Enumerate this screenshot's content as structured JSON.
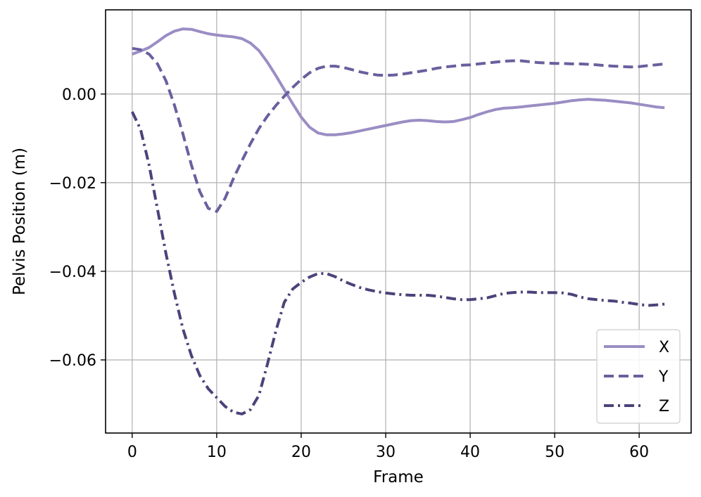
{
  "chart_data": {
    "type": "line",
    "xlabel": "Frame",
    "ylabel": "Pelvis Position (m)",
    "xlim": [
      -3.15,
      66.15
    ],
    "ylim": [
      -0.0765,
      0.019
    ],
    "xticks": [
      0,
      10,
      20,
      30,
      40,
      50,
      60
    ],
    "yticks": [
      0.0,
      -0.02,
      -0.04,
      -0.06
    ],
    "xtick_labels": [
      "0",
      "10",
      "20",
      "30",
      "40",
      "50",
      "60"
    ],
    "ytick_labels": [
      "0.00",
      "−0.02",
      "−0.04",
      "−0.06"
    ],
    "grid": true,
    "legend_position": "lower-right",
    "series": [
      {
        "name": "X",
        "style": "solid",
        "color": "#9b8dc4",
        "x": [
          0,
          1,
          2,
          3,
          4,
          5,
          6,
          7,
          8,
          9,
          10,
          11,
          12,
          13,
          14,
          15,
          16,
          17,
          18,
          19,
          20,
          21,
          22,
          23,
          24,
          25,
          26,
          27,
          28,
          29,
          30,
          31,
          32,
          33,
          34,
          35,
          36,
          37,
          38,
          39,
          40,
          41,
          42,
          43,
          44,
          45,
          46,
          47,
          48,
          49,
          50,
          51,
          52,
          53,
          54,
          55,
          56,
          57,
          58,
          59,
          60,
          61,
          62,
          63
        ],
        "y": [
          0.009,
          0.0097,
          0.0105,
          0.0118,
          0.0132,
          0.0142,
          0.0147,
          0.0146,
          0.0141,
          0.0136,
          0.0133,
          0.0131,
          0.0129,
          0.0125,
          0.0115,
          0.0098,
          0.0072,
          0.0042,
          0.001,
          -0.0022,
          -0.0052,
          -0.0075,
          -0.0088,
          -0.0092,
          -0.0092,
          -0.009,
          -0.0087,
          -0.0083,
          -0.0079,
          -0.0075,
          -0.0071,
          -0.0067,
          -0.0063,
          -0.006,
          -0.0059,
          -0.006,
          -0.0062,
          -0.0063,
          -0.0062,
          -0.0058,
          -0.0053,
          -0.0046,
          -0.004,
          -0.0035,
          -0.0032,
          -0.0031,
          -0.0029,
          -0.0027,
          -0.0025,
          -0.0023,
          -0.0021,
          -0.0018,
          -0.0015,
          -0.0013,
          -0.0012,
          -0.0013,
          -0.0014,
          -0.0016,
          -0.0018,
          -0.002,
          -0.0023,
          -0.0026,
          -0.0029,
          -0.0031
        ]
      },
      {
        "name": "Y",
        "style": "dashed",
        "color": "#6a5f9e",
        "x": [
          0,
          1,
          2,
          3,
          4,
          5,
          6,
          7,
          8,
          9,
          10,
          11,
          12,
          13,
          14,
          15,
          16,
          17,
          18,
          19,
          20,
          21,
          22,
          23,
          24,
          25,
          26,
          27,
          28,
          29,
          30,
          31,
          32,
          33,
          34,
          35,
          36,
          37,
          38,
          39,
          40,
          41,
          42,
          43,
          44,
          45,
          46,
          47,
          48,
          49,
          50,
          51,
          52,
          53,
          54,
          55,
          56,
          57,
          58,
          59,
          60,
          61,
          62,
          63
        ],
        "y": [
          0.0103,
          0.01,
          0.009,
          0.0068,
          0.003,
          -0.0025,
          -0.009,
          -0.016,
          -0.022,
          -0.0258,
          -0.0265,
          -0.0235,
          -0.019,
          -0.015,
          -0.0112,
          -0.0078,
          -0.005,
          -0.0026,
          -0.0005,
          0.0015,
          0.0033,
          0.0048,
          0.0058,
          0.0063,
          0.0063,
          0.006,
          0.0055,
          0.005,
          0.0046,
          0.0043,
          0.0042,
          0.0043,
          0.0045,
          0.0048,
          0.0051,
          0.0054,
          0.0058,
          0.0061,
          0.0063,
          0.0065,
          0.0066,
          0.0068,
          0.007,
          0.0072,
          0.0074,
          0.0075,
          0.0075,
          0.0073,
          0.0071,
          0.007,
          0.0069,
          0.0069,
          0.0068,
          0.0068,
          0.0067,
          0.0066,
          0.0064,
          0.0063,
          0.0062,
          0.0061,
          0.0062,
          0.0064,
          0.0066,
          0.0068
        ]
      },
      {
        "name": "Z",
        "style": "dashdot",
        "color": "#4a437a",
        "x": [
          0,
          1,
          2,
          3,
          4,
          5,
          6,
          7,
          8,
          9,
          10,
          11,
          12,
          13,
          14,
          15,
          16,
          17,
          18,
          19,
          20,
          21,
          22,
          23,
          24,
          25,
          26,
          27,
          28,
          29,
          30,
          31,
          32,
          33,
          34,
          35,
          36,
          37,
          38,
          39,
          40,
          41,
          42,
          43,
          44,
          45,
          46,
          47,
          48,
          49,
          50,
          51,
          52,
          53,
          54,
          55,
          56,
          57,
          58,
          59,
          60,
          61,
          62,
          63
        ],
        "y": [
          -0.004,
          -0.008,
          -0.016,
          -0.026,
          -0.036,
          -0.045,
          -0.053,
          -0.059,
          -0.0635,
          -0.0665,
          -0.0685,
          -0.0705,
          -0.0718,
          -0.0722,
          -0.0712,
          -0.068,
          -0.061,
          -0.0535,
          -0.047,
          -0.044,
          -0.0425,
          -0.0413,
          -0.0405,
          -0.0405,
          -0.0412,
          -0.0422,
          -0.043,
          -0.0437,
          -0.0442,
          -0.0446,
          -0.0449,
          -0.0451,
          -0.0453,
          -0.0454,
          -0.0454,
          -0.0454,
          -0.0456,
          -0.0459,
          -0.0462,
          -0.0464,
          -0.0464,
          -0.0462,
          -0.046,
          -0.0455,
          -0.045,
          -0.0448,
          -0.0447,
          -0.0447,
          -0.0448,
          -0.0448,
          -0.0448,
          -0.0449,
          -0.0452,
          -0.0458,
          -0.0462,
          -0.0464,
          -0.0466,
          -0.0467,
          -0.047,
          -0.0472,
          -0.0475,
          -0.0477,
          -0.0476,
          -0.0474
        ]
      }
    ]
  }
}
